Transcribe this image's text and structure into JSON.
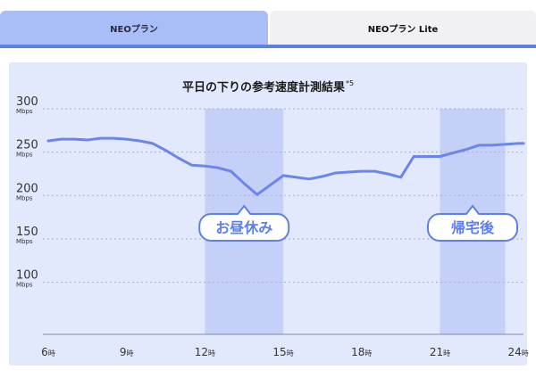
{
  "tabs": [
    {
      "label": "NEOプラン",
      "active": true
    },
    {
      "label": "NEOプラン Lite",
      "active": false
    }
  ],
  "colors": {
    "accent": "#5f7fe6",
    "tab_active": "#a9bdf6",
    "panel_bg": "#e3e9fc",
    "highlight_band": "#c4d0f8",
    "line": "#6a86ea"
  },
  "chart_data": {
    "type": "line",
    "title": "平日の下りの参考速度計測結果",
    "title_note": "*5",
    "unit": "Mbps",
    "yticks": [
      {
        "value": 300,
        "label": "300",
        "unit": "Mbps"
      },
      {
        "value": 250,
        "label": "250",
        "unit": "Mbps"
      },
      {
        "value": 200,
        "label": "200",
        "unit": "Mbps"
      },
      {
        "value": 150,
        "label": "150",
        "unit": "Mbps"
      },
      {
        "value": 100,
        "label": "100",
        "unit": "Mbps"
      }
    ],
    "ylim": [
      40,
      300
    ],
    "xlim": [
      6,
      24.2
    ],
    "xticks": [
      {
        "value": 6,
        "label": "6",
        "suffix": "時"
      },
      {
        "value": 9,
        "label": "9",
        "suffix": "時"
      },
      {
        "value": 12,
        "label": "12",
        "suffix": "時"
      },
      {
        "value": 15,
        "label": "15",
        "suffix": "時"
      },
      {
        "value": 18,
        "label": "18",
        "suffix": "時"
      },
      {
        "value": 21,
        "label": "21",
        "suffix": "時"
      },
      {
        "value": 24,
        "label": "24",
        "suffix": "時"
      }
    ],
    "grid": true,
    "bands": [
      {
        "from": 12.0,
        "to": 15.0,
        "label": "お昼休み"
      },
      {
        "from": 21.0,
        "to": 23.5,
        "label": "帰宅後"
      }
    ],
    "x": [
      6,
      6.5,
      7,
      7.5,
      8,
      8.5,
      9,
      9.5,
      10,
      10.5,
      11,
      11.5,
      12,
      12.5,
      13,
      13.5,
      14,
      14.5,
      15,
      15.5,
      16,
      16.5,
      17,
      17.5,
      18,
      18.5,
      19,
      19.5,
      20,
      20.5,
      21,
      21.5,
      22,
      22.5,
      23,
      23.5,
      24,
      24.2
    ],
    "values": [
      263,
      265,
      265,
      264,
      266,
      266,
      265,
      263,
      260,
      252,
      243,
      235,
      234,
      232,
      228,
      214,
      201,
      212,
      223,
      221,
      219,
      222,
      226,
      227,
      228,
      228,
      225,
      221,
      245,
      245,
      245,
      249,
      253,
      258,
      258,
      259,
      260,
      260
    ]
  }
}
